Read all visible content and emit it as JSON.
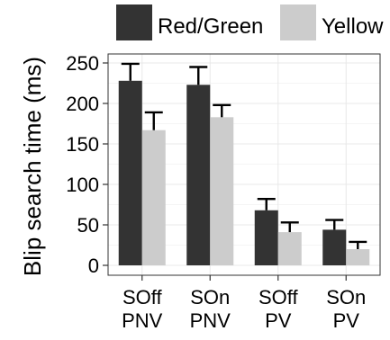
{
  "chart_data": {
    "type": "bar",
    "title": "",
    "xlabel": "",
    "ylabel": "Blip search time (ms)",
    "categories": [
      {
        "line1": "SOff",
        "line2": "PNV"
      },
      {
        "line1": "SOn",
        "line2": "PNV"
      },
      {
        "line1": "SOff",
        "line2": "PV"
      },
      {
        "line1": "SOn",
        "line2": "PV"
      }
    ],
    "series": [
      {
        "name": "Red/Green",
        "color": "#333333",
        "values": [
          228,
          223,
          68,
          44
        ],
        "error": [
          21,
          22,
          14,
          12
        ]
      },
      {
        "name": "Yellow",
        "color": "#cccccc",
        "values": [
          167,
          183,
          41,
          20
        ],
        "error": [
          22,
          15,
          12,
          9
        ]
      }
    ],
    "ylim": [
      0,
      262
    ],
    "yticks": [
      0,
      50,
      100,
      150,
      200,
      250
    ],
    "grid": true,
    "legend_position": "top"
  }
}
